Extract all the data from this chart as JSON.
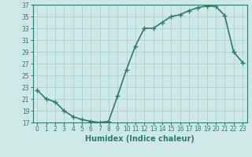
{
  "x": [
    0,
    1,
    2,
    3,
    4,
    5,
    6,
    7,
    8,
    9,
    10,
    11,
    12,
    13,
    14,
    15,
    16,
    17,
    18,
    19,
    20,
    21,
    22,
    23
  ],
  "y": [
    22.5,
    21.0,
    20.5,
    19.0,
    18.0,
    17.5,
    17.2,
    17.0,
    17.2,
    21.5,
    26.0,
    30.0,
    33.0,
    33.0,
    34.0,
    35.0,
    35.3,
    36.0,
    36.5,
    36.8,
    36.7,
    35.2,
    29.0,
    27.2
  ],
  "line_color": "#2e7d6e",
  "marker_color": "#2e7d6e",
  "bg_color": "#cde8e5",
  "grid_color": "#aacfcc",
  "xlabel": "Humidex (Indice chaleur)",
  "ylim": [
    17,
    37
  ],
  "xlim_min": -0.5,
  "xlim_max": 23.5,
  "yticks": [
    17,
    19,
    21,
    23,
    25,
    27,
    29,
    31,
    33,
    35,
    37
  ],
  "xticks": [
    0,
    1,
    2,
    3,
    4,
    5,
    6,
    7,
    8,
    9,
    10,
    11,
    12,
    13,
    14,
    15,
    16,
    17,
    18,
    19,
    20,
    21,
    22,
    23
  ],
  "tick_color": "#2e7d6e",
  "xlabel_color": "#2e7d6e",
  "line_width": 1.2,
  "marker_size": 4,
  "tick_fontsize": 5.5,
  "xlabel_fontsize": 7
}
